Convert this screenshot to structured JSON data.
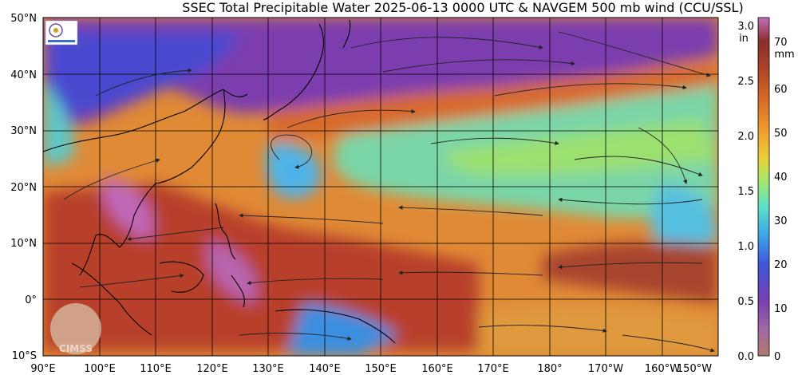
{
  "title": "SSEC Total Precipitable Water  2025-06-13 0000 UTC & NAVGEM 500 mb wind (CCU/SSL)",
  "latitude_labels": [
    "50°N",
    "40°N",
    "30°N",
    "20°N",
    "10°N",
    "0°",
    "10°S"
  ],
  "longitude_labels": [
    "90°E",
    "100°E",
    "110°E",
    "120°E",
    "130°E",
    "140°E",
    "150°E",
    "160°E",
    "170°E",
    "180°",
    "170°W",
    "160°W",
    "150°W"
  ],
  "colorbar": {
    "inch_unit": "in",
    "mm_unit": "mm",
    "inch_ticks": [
      "3.0",
      "2.5",
      "2.0",
      "1.5",
      "1.0",
      "0.5",
      "0.0"
    ],
    "mm_ticks": [
      "70",
      "60",
      "50",
      "40",
      "30",
      "20",
      "10",
      "0"
    ],
    "gradient_colors": [
      "#b07a6f",
      "#a06aa6",
      "#7a3fae",
      "#3f56d8",
      "#3fa6e8",
      "#5de0c8",
      "#a8e86a",
      "#e8d23c",
      "#f0a030",
      "#d46a28",
      "#a8402a",
      "#8a2d2d",
      "#c070b8"
    ]
  },
  "logos": {
    "cimss_text": "CIMSS"
  }
}
